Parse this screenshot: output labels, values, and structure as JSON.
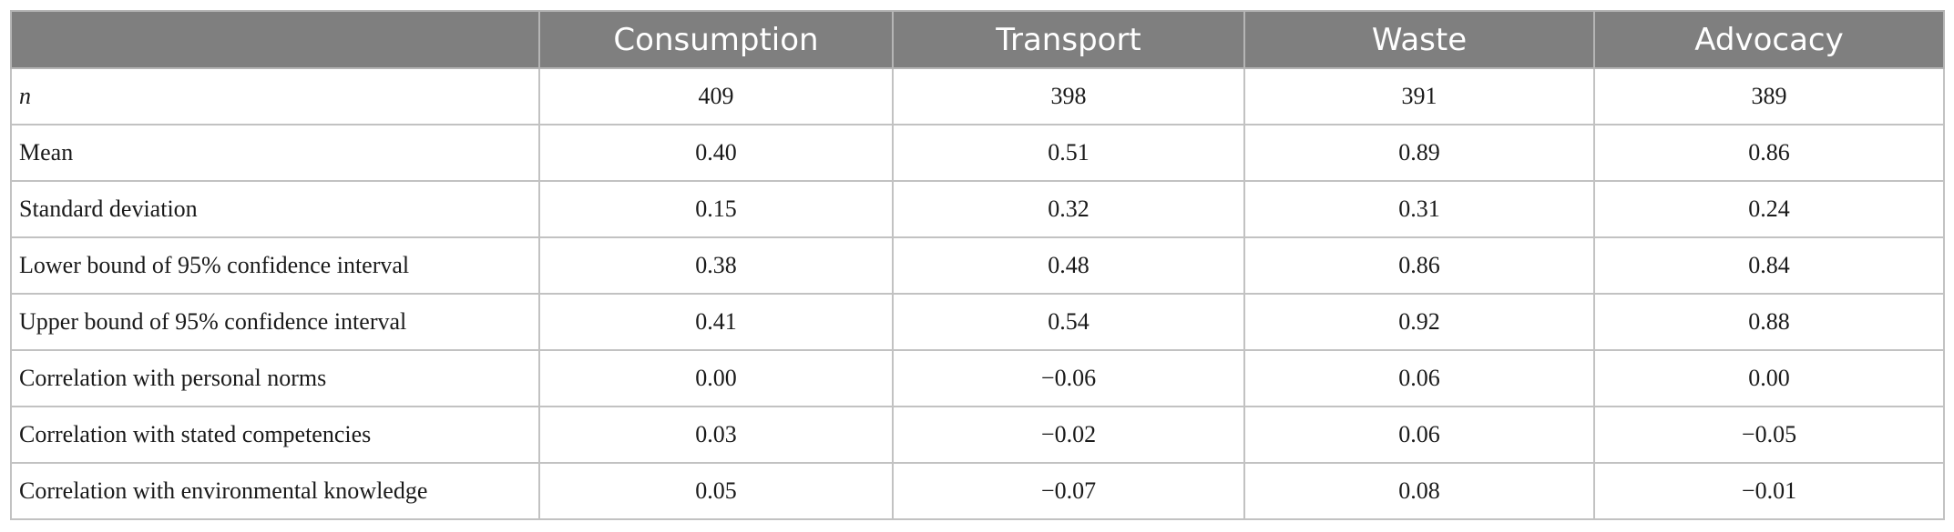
{
  "table": {
    "columns": [
      "",
      "Consumption",
      "Transport",
      "Waste",
      "Advocacy"
    ],
    "rows": [
      {
        "label": "n",
        "italic": true,
        "values": [
          "409",
          "398",
          "391",
          "389"
        ]
      },
      {
        "label": "Mean",
        "values": [
          "0.40",
          "0.51",
          "0.89",
          "0.86"
        ]
      },
      {
        "label": "Standard deviation",
        "values": [
          "0.15",
          "0.32",
          "0.31",
          "0.24"
        ]
      },
      {
        "label": "Lower bound of 95% confidence interval",
        "values": [
          "0.38",
          "0.48",
          "0.86",
          "0.84"
        ]
      },
      {
        "label": "Upper bound of 95% confidence interval",
        "values": [
          "0.41",
          "0.54",
          "0.92",
          "0.88"
        ]
      },
      {
        "label": "Correlation with personal norms",
        "values": [
          "0.00",
          "−0.06",
          "0.06",
          "0.00"
        ]
      },
      {
        "label": "Correlation with stated competencies",
        "values": [
          "0.03",
          "−0.02",
          "0.06",
          "−0.05"
        ]
      },
      {
        "label": "Correlation with environmental knowledge",
        "values": [
          "0.05",
          "−0.07",
          "0.08",
          "−0.01"
        ]
      }
    ]
  },
  "colors": {
    "header_bg": "#7f7f7f",
    "header_text": "#ffffff",
    "border": "#c2c2c2",
    "body_text": "#1a1a1a"
  }
}
